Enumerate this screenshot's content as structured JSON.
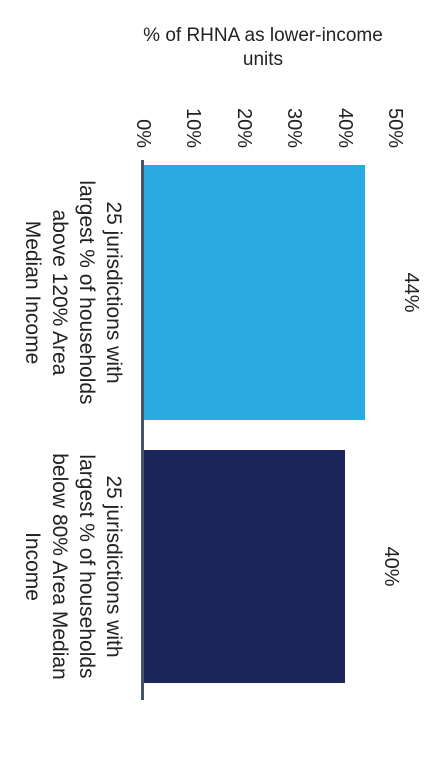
{
  "chart_data": {
    "type": "bar",
    "categories": [
      "25 jurisdictions with largest % of households above 120% Area Median Income",
      "25 jurisdictions with largest % of households below 80% Area Median Income"
    ],
    "values": [
      44,
      40
    ],
    "data_labels": [
      "44%",
      "40%"
    ],
    "colors": [
      "#29aae1",
      "#1b2559"
    ],
    "ylabel": "% of RHNA as lower-income units",
    "yticks": [
      "0%",
      "10%",
      "20%",
      "30%",
      "40%",
      "50%"
    ],
    "ylim": [
      0,
      50
    ],
    "grid": false,
    "baseline_color": "#44546a",
    "orientation": "rotated 90° clockwise"
  }
}
